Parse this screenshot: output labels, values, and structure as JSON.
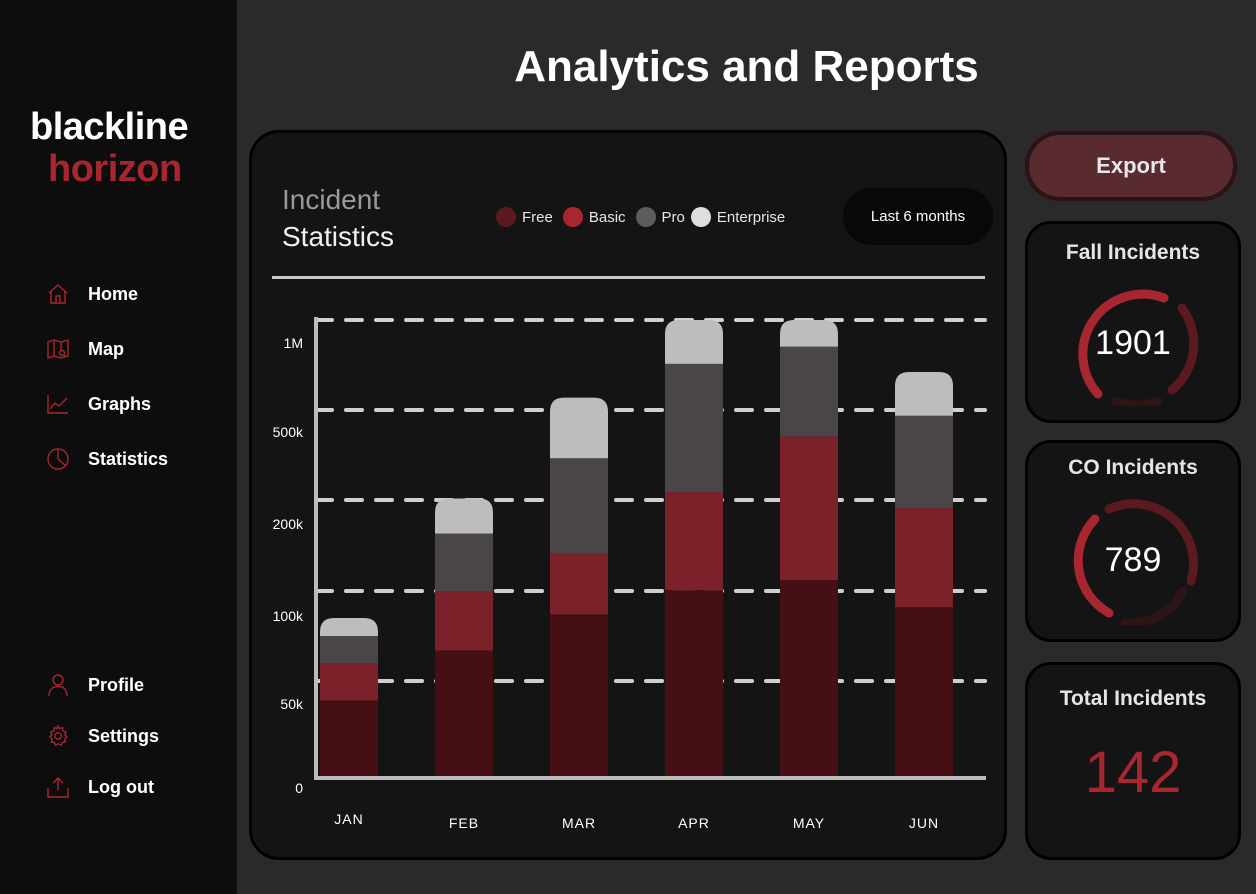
{
  "brand": {
    "line1": "blackline",
    "line2": "horizon"
  },
  "nav": {
    "top": [
      {
        "label": "Home",
        "icon": "home-icon"
      },
      {
        "label": "Map",
        "icon": "map-icon"
      },
      {
        "label": "Graphs",
        "icon": "line-chart-icon"
      },
      {
        "label": "Statistics",
        "icon": "pie-chart-icon"
      }
    ],
    "bottom": [
      {
        "label": "Profile",
        "icon": "user-icon"
      },
      {
        "label": "Settings",
        "icon": "gear-icon"
      },
      {
        "label": "Log out",
        "icon": "logout-icon"
      }
    ]
  },
  "page": {
    "title": "Analytics and Reports"
  },
  "chart": {
    "title_line1": "Incident",
    "title_line2": "Statistics",
    "range_label": "Last 6 months"
  },
  "export": {
    "label": "Export"
  },
  "cards": {
    "fall": {
      "title": "Fall Incidents",
      "value": "1901"
    },
    "co": {
      "title": "CO Incidents",
      "value": "789"
    },
    "total": {
      "title": "Total Incidents",
      "value": "142"
    }
  },
  "colors": {
    "accent": "#a8262f",
    "free": "#450f14",
    "basic": "#7a212a",
    "pro": "#4a4546",
    "enterprise": "#bdbdbd"
  },
  "chart_data": {
    "type": "bar",
    "stacked": true,
    "categories": [
      "JAN",
      "FEB",
      "MAR",
      "APR",
      "MAY",
      "JUN"
    ],
    "y_ticks": [
      "0",
      "50k",
      "100k",
      "200k",
      "500k",
      "1M"
    ],
    "y_tick_values": [
      0,
      50000,
      100000,
      200000,
      500000,
      1000000
    ],
    "grid": true,
    "legend_position": "top",
    "series": [
      {
        "name": "Free",
        "color": "#450f14",
        "values": [
          40000,
          67000,
          87000,
          101000,
          112000,
          91000
        ]
      },
      {
        "name": "Basic",
        "color": "#7a212a",
        "values": [
          20000,
          33000,
          54000,
          125000,
          300000,
          100000
        ]
      },
      {
        "name": "Pro",
        "color": "#4a4546",
        "values": [
          15000,
          63000,
          198000,
          530000,
          440000,
          290000
        ]
      },
      {
        "name": "Enterprise",
        "color": "#bdbdbd",
        "values": [
          10000,
          42000,
          230000,
          280000,
          510000,
          230000
        ]
      }
    ]
  }
}
